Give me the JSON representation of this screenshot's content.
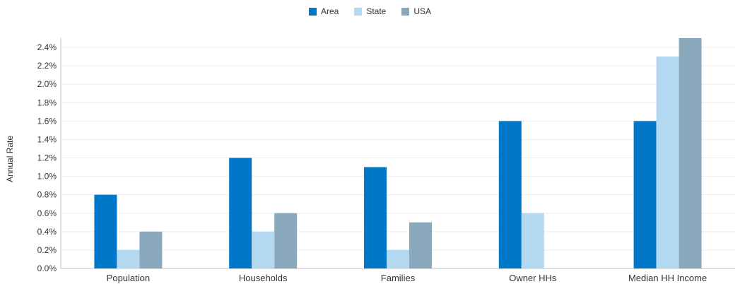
{
  "chart_data": {
    "type": "bar",
    "categories": [
      "Population",
      "Households",
      "Families",
      "Owner HHs",
      "Median HH Income"
    ],
    "series": [
      {
        "name": "Area",
        "color": "#0077c8",
        "values": [
          0.8,
          1.2,
          1.1,
          1.6,
          1.6
        ]
      },
      {
        "name": "State",
        "color": "#b3d9f2",
        "values": [
          0.2,
          0.4,
          0.2,
          0.6,
          2.3
        ]
      },
      {
        "name": "USA",
        "color": "#8aa9bd",
        "values": [
          0.4,
          0.6,
          0.5,
          0.0,
          2.5
        ]
      }
    ],
    "ylabel": "Annual Rate",
    "ylim": [
      0,
      2.5
    ],
    "yticks": [
      "0.0%",
      "0.2%",
      "0.4%",
      "0.6%",
      "0.8%",
      "1.0%",
      "1.2%",
      "1.4%",
      "1.6%",
      "1.8%",
      "2.0%",
      "2.2%",
      "2.4%"
    ],
    "grid": true,
    "legend": "top-center"
  }
}
